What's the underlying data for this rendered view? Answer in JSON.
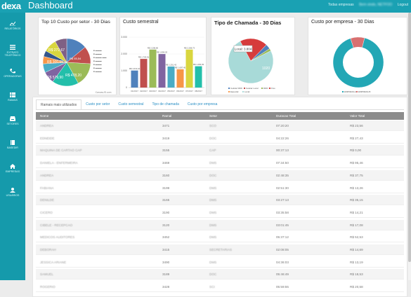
{
  "app": {
    "logo_main": "dex",
    "logo_accent": "a",
    "title": "Dashboard"
  },
  "topbar": {
    "company": "Todas empresas",
    "welcome": "Bem vindo, NETFOO",
    "logout": "Logout"
  },
  "sidebar": {
    "items": [
      {
        "label": "RELATÓRIOS",
        "icon": "chart-line-icon"
      },
      {
        "label": "EXTRATO TELEFÔNICO",
        "icon": "list-icon"
      },
      {
        "label": "OPERADORAS",
        "icon": "phone-icon"
      },
      {
        "label": "RAMAIS",
        "icon": "table-icon"
      },
      {
        "label": "SETORES",
        "icon": "inbox-icon"
      },
      {
        "label": "BASEDIR",
        "icon": "book-icon"
      },
      {
        "label": "EMPRESAS",
        "icon": "home-icon"
      },
      {
        "label": "USUÁRIOS",
        "icon": "user-icon"
      }
    ]
  },
  "cards": {
    "top10": {
      "title": "Top 10 Custo por setor - 30 Dias",
      "slice_labels": [
        "R$ 272,67",
        "R$ 300,65",
        "R$ 579,90",
        "R$ 478,20",
        "R$ 55,54",
        "R$ 200"
      ],
      "credit": "CanvasJS.com",
      "colors": [
        "#4f81bc",
        "#c0504e",
        "#9bbb58",
        "#23bfaa",
        "#8064a1",
        "#4aacc5",
        "#f79647",
        "#33558b",
        "#d9d63f",
        "#7f6084"
      ]
    },
    "semestral": {
      "title": "Custo semestral",
      "chart_data": {
        "type": "bar",
        "categories": [
          "01/2017",
          "02/2017",
          "03/2017",
          "04/2017",
          "05/2017",
          "06/2017",
          "07/2017",
          "08/2017"
        ],
        "values": [
          1013.1,
          1703.91,
          2258.8,
          1994.03,
          1251.43,
          1087.45,
          2258.73,
          1266.93
        ],
        "value_labels": [
          "R$ 1.013,10",
          "R$ 1.703,91",
          "R$ 2.258,80",
          "R$ 1.994,03",
          "R$ 1.251,43",
          "R$ 1.087,45",
          "R$ 2.258,73",
          "R$ 1.266,93"
        ],
        "ylim": [
          0,
          3000
        ],
        "yticks": [
          "3.000",
          "2.000",
          "1.000",
          "0"
        ],
        "colors": [
          "#4f81bc",
          "#c0504e",
          "#9bbb58",
          "#8064a1",
          "#4aacc5",
          "#f79647",
          "#d9d63f",
          "#23bfaa"
        ]
      }
    },
    "chamada": {
      "title": "Tipo de Chamada - 30 Dias",
      "tooltip": "Local: 3.804",
      "slice_label": "1020",
      "legend": [
        "Celular DDD",
        "Celular Local",
        "DDD",
        "Fixo",
        "Especial",
        "Local"
      ],
      "chart_data": {
        "type": "pie",
        "series": [
          {
            "name": "Local",
            "value": 3804,
            "color": "#a8dad8"
          },
          {
            "name": "DDD",
            "value": 1020,
            "color": "#d63c3c"
          },
          {
            "name": "Celular Local",
            "value": 180,
            "color": "#4f81bc"
          },
          {
            "name": "Fixo",
            "value": 90,
            "color": "#9bbb58"
          }
        ]
      }
    },
    "empresa": {
      "title": "Custo por empresa - 30 Dias",
      "label_big": "R$ 5.580,01",
      "label_small": "R$ 7",
      "legend": [
        "EMPRESA A",
        "EMPRESA B"
      ],
      "chart_data": {
        "type": "pie",
        "series": [
          {
            "name": "EMPRESA A",
            "value": 91,
            "color": "#23a7b5"
          },
          {
            "name": "EMPRESA B",
            "value": 9,
            "color": "#d87070"
          }
        ]
      }
    }
  },
  "tabs": [
    "Ramais mais utilizados",
    "Custo por setor",
    "Custo semestral",
    "Tipo de chamada",
    "Custo por empresa"
  ],
  "table": {
    "headers": [
      "Nome",
      "Ramal",
      "Setor",
      "Duracao Total",
      "Valor Total"
    ],
    "rows": [
      [
        "ANDREA",
        "3471",
        "SCO",
        "07:20:20",
        "R$ 23,56"
      ],
      [
        "EDNEIDE",
        "3419",
        "DOC",
        "04:22:26",
        "R$ 27,43"
      ],
      [
        "MAQUINA DE CARTAO CAP",
        "3155",
        "CAP",
        "00:37:13",
        "R$ 0,00"
      ],
      [
        "DANIELA - ENFERMEIRA",
        "3469",
        "DMS",
        "07:34:50",
        "R$ 95,46"
      ],
      [
        "ANDREA",
        "3160",
        "DOC",
        "02:48:35",
        "R$ 37,75"
      ],
      [
        "FABIANA",
        "3199",
        "DMS",
        "02:51:30",
        "R$ 13,26"
      ],
      [
        "DENILDE",
        "3165",
        "DMS",
        "03:27:13",
        "R$ 35,15"
      ],
      [
        "CICERO",
        "3190",
        "DMS",
        "03:35:58",
        "R$ 14,21"
      ],
      [
        "CIBELE - RECEPCAO",
        "3120",
        "DMS",
        "03:01:45",
        "R$ 17,08"
      ],
      [
        "MEDICOS AUDITORES",
        "3452",
        "DMS",
        "05:37:12",
        "R$ 52,53"
      ],
      [
        "DEBORAH",
        "3415",
        "SECRETARIAS",
        "02:08:05",
        "R$ 14,69"
      ],
      [
        "JESSICA ARIANE",
        "3490",
        "DMS",
        "04:36:03",
        "R$ 13,19"
      ],
      [
        "SAMUEL",
        "3189",
        "DOC",
        "05:46:49",
        "R$ 18,53"
      ],
      [
        "ROGERIO",
        "3428",
        "SCI",
        "05:59:55",
        "R$ 20,58"
      ]
    ]
  }
}
